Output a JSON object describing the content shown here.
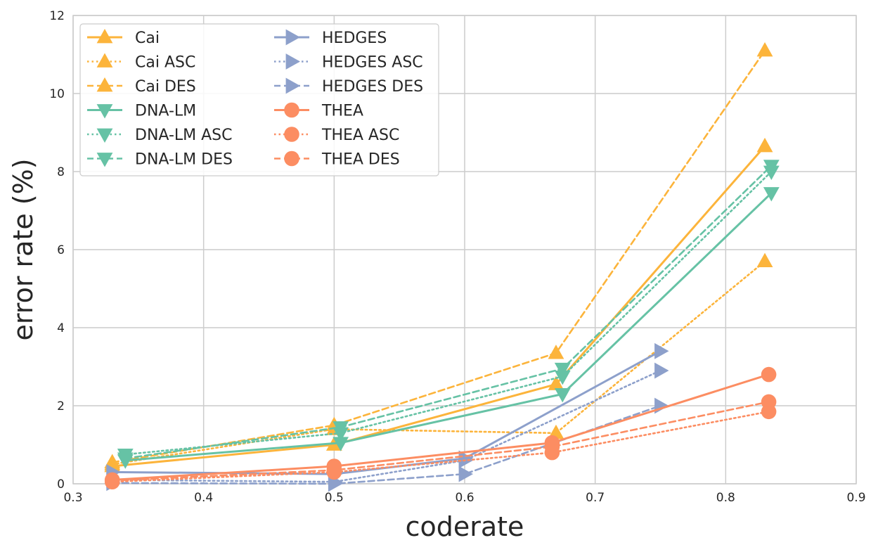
{
  "chart_data": {
    "type": "line",
    "title": "",
    "xlabel": "coderate",
    "ylabel": "error rate (%)",
    "xlim": [
      0.3,
      0.9
    ],
    "ylim": [
      0,
      12
    ],
    "xticks": [
      "0.3",
      "0.4",
      "0.5",
      "0.6",
      "0.7",
      "0.8",
      "0.9"
    ],
    "yticks": [
      "0",
      "2",
      "4",
      "6",
      "8",
      "10",
      "12"
    ],
    "grid": true,
    "legend_position": "top-left",
    "legend_columns": 2,
    "colors": {
      "cai": "#fcb43b",
      "dnalm": "#66c2a5",
      "hedges": "#8da0cb",
      "thea": "#fc8d62"
    },
    "series": [
      {
        "name": "Cai",
        "color": "#fcb43b",
        "style": "solid",
        "marker": "triangle-up",
        "x": [
          0.33,
          0.5,
          0.67,
          0.83
        ],
        "y": [
          0.45,
          1.0,
          2.55,
          8.65
        ]
      },
      {
        "name": "Cai ASC",
        "color": "#fcb43b",
        "style": "dotted",
        "marker": "triangle-up",
        "x": [
          0.33,
          0.5,
          0.67,
          0.83
        ],
        "y": [
          0.5,
          1.4,
          1.3,
          5.7
        ]
      },
      {
        "name": "Cai DES",
        "color": "#fcb43b",
        "style": "dashed",
        "marker": "triangle-up",
        "x": [
          0.33,
          0.5,
          0.67,
          0.83
        ],
        "y": [
          0.55,
          1.5,
          3.35,
          11.1
        ]
      },
      {
        "name": "DNA-LM",
        "color": "#66c2a5",
        "style": "solid",
        "marker": "triangle-down",
        "x": [
          0.34,
          0.505,
          0.675,
          0.835
        ],
        "y": [
          0.6,
          1.05,
          2.3,
          7.45
        ]
      },
      {
        "name": "DNA-LM ASC",
        "color": "#66c2a5",
        "style": "dotted",
        "marker": "triangle-down",
        "x": [
          0.34,
          0.505,
          0.675,
          0.835
        ],
        "y": [
          0.75,
          1.3,
          2.75,
          8.0
        ]
      },
      {
        "name": "DNA-LM DES",
        "color": "#66c2a5",
        "style": "dashed",
        "marker": "triangle-down",
        "x": [
          0.34,
          0.505,
          0.675,
          0.835
        ],
        "y": [
          0.65,
          1.45,
          2.95,
          8.15
        ]
      },
      {
        "name": "HEDGES",
        "color": "#8da0cb",
        "style": "solid",
        "marker": "triangle-right",
        "x": [
          0.33,
          0.5,
          0.6,
          0.75
        ],
        "y": [
          0.3,
          0.25,
          0.65,
          3.4
        ]
      },
      {
        "name": "HEDGES ASC",
        "color": "#8da0cb",
        "style": "dotted",
        "marker": "triangle-right",
        "x": [
          0.33,
          0.5,
          0.6,
          0.75
        ],
        "y": [
          0.1,
          0.05,
          0.6,
          2.9
        ]
      },
      {
        "name": "HEDGES DES",
        "color": "#8da0cb",
        "style": "dashed",
        "marker": "triangle-right",
        "x": [
          0.33,
          0.5,
          0.6,
          0.75
        ],
        "y": [
          0.02,
          0.0,
          0.25,
          2.0
        ]
      },
      {
        "name": "THEA",
        "color": "#fc8d62",
        "style": "solid",
        "marker": "circle",
        "x": [
          0.33,
          0.5,
          0.667,
          0.833
        ],
        "y": [
          0.1,
          0.45,
          1.05,
          2.8
        ]
      },
      {
        "name": "THEA ASC",
        "color": "#fc8d62",
        "style": "dotted",
        "marker": "circle",
        "x": [
          0.33,
          0.5,
          0.667,
          0.833
        ],
        "y": [
          0.05,
          0.3,
          0.8,
          1.85
        ]
      },
      {
        "name": "THEA DES",
        "color": "#fc8d62",
        "style": "dashed",
        "marker": "circle",
        "x": [
          0.33,
          0.5,
          0.667,
          0.833
        ],
        "y": [
          0.08,
          0.35,
          0.95,
          2.1
        ]
      }
    ]
  }
}
